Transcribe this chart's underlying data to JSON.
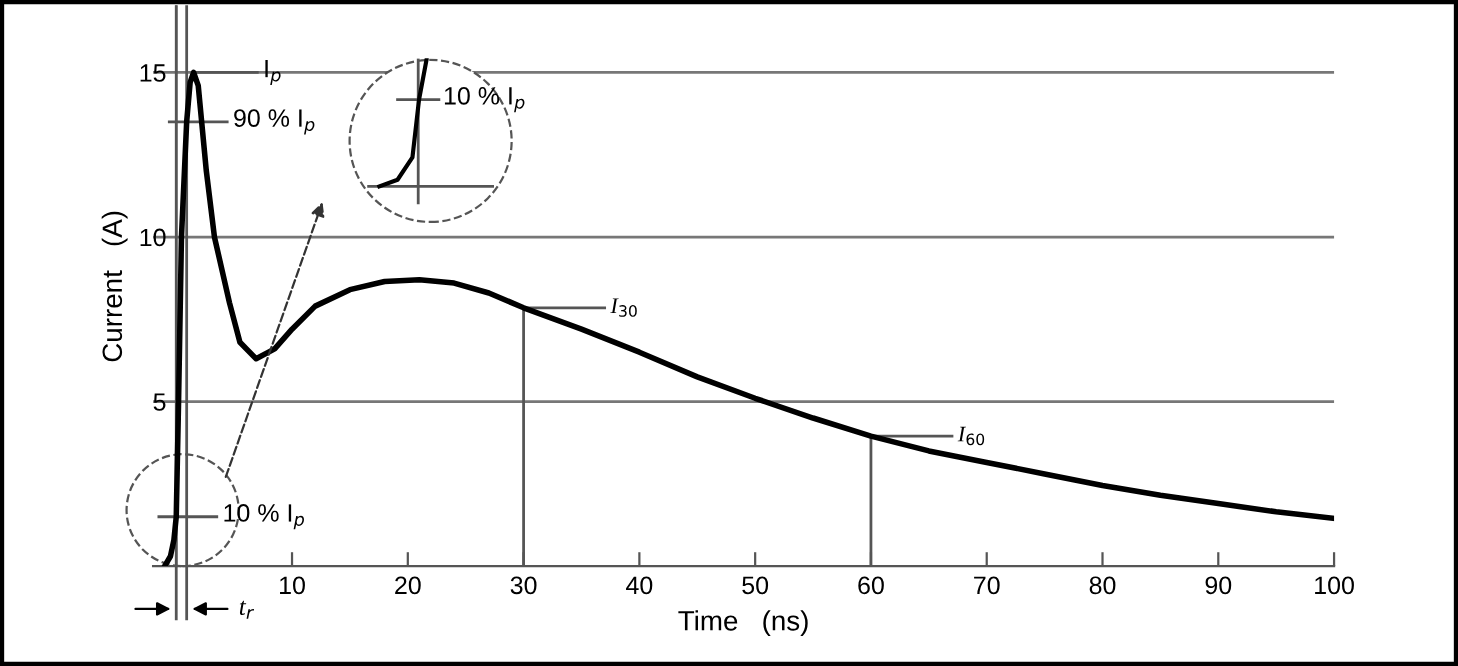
{
  "chart_data": {
    "type": "line",
    "xlabel": "Time   (ns)",
    "ylabel": "Current   (A)",
    "series": [
      {
        "color": "#000000",
        "x": [
          -1,
          -0.5,
          -0.2,
          0,
          0.2,
          0.45,
          0.9,
          1.2,
          1.5,
          1.9,
          2.6,
          3.3,
          4.6,
          5.5,
          6.9,
          8.5,
          10,
          12,
          15,
          18,
          21,
          24,
          27,
          30,
          35,
          40,
          45,
          50,
          55,
          60,
          65,
          70,
          75,
          80,
          85,
          90,
          95,
          100
        ],
        "values": [
          0,
          0.3,
          0.8,
          1.5,
          5,
          10,
          13.5,
          14.7,
          15,
          14.6,
          12,
          10,
          8,
          6.8,
          6.3,
          6.6,
          7.2,
          7.9,
          8.4,
          8.65,
          8.7,
          8.6,
          8.3,
          7.85,
          7.2,
          6.5,
          5.75,
          5.1,
          4.5,
          3.95,
          3.5,
          3.15,
          2.8,
          2.45,
          2.15,
          1.9,
          1.65,
          1.45
        ]
      }
    ],
    "xlim": [
      -2,
      100
    ],
    "ylim": [
      0,
      17
    ],
    "xticks": [
      10,
      20,
      30,
      40,
      50,
      60,
      70,
      80,
      90,
      100
    ],
    "yticks": [
      5,
      10,
      15
    ],
    "grid": "y",
    "marker": "none",
    "line_style": "solid",
    "annotations": [
      {
        "text": "I$_{p}$",
        "x": 1.5,
        "y": 15
      },
      {
        "text": "90 % I$_{p}$",
        "x": 0.9,
        "y": 13.5
      },
      {
        "text": "10 % I$_{p}$",
        "x": 0,
        "y": 1.5
      },
      "t$_{r}$",
      "10 % I$_{p}$"
    ],
    "ref_lines": [
      {
        "axis": "x",
        "value": 0
      },
      {
        "axis": "x",
        "value": 0.9
      },
      {
        "axis": "x",
        "value": 30,
        "label": "I$_{30}$"
      },
      {
        "axis": "x",
        "value": 60,
        "label": "I$_{60}$"
      }
    ]
  }
}
